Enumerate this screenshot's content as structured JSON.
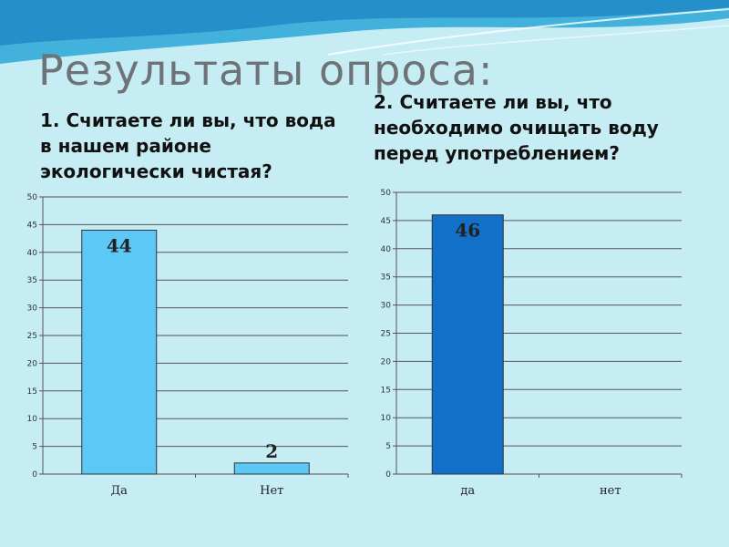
{
  "slide": {
    "title": "Результаты опроса:",
    "questions": [
      "1. Считаете ли вы, что вода в нашем районе экологически чистая?",
      "2. Считаете ли вы, что необходимо очищать воду перед употреблением?"
    ]
  },
  "chart_data": [
    {
      "type": "bar",
      "categories": [
        "Да",
        "Нет"
      ],
      "values": [
        44,
        2
      ],
      "data_labels": [
        "44",
        "2"
      ],
      "ylim": [
        0,
        50
      ],
      "yticks": [
        0,
        5,
        10,
        15,
        20,
        25,
        30,
        35,
        40,
        45,
        50
      ],
      "grid": true,
      "bar_color": "#5bc8f5"
    },
    {
      "type": "bar",
      "categories": [
        "да",
        "нет"
      ],
      "values": [
        46,
        0
      ],
      "data_labels": [
        "46",
        ""
      ],
      "ylim": [
        0,
        50
      ],
      "yticks": [
        0,
        5,
        10,
        15,
        20,
        25,
        30,
        35,
        40,
        45,
        50
      ],
      "grid": true,
      "bar_color": "#1270c8"
    }
  ]
}
